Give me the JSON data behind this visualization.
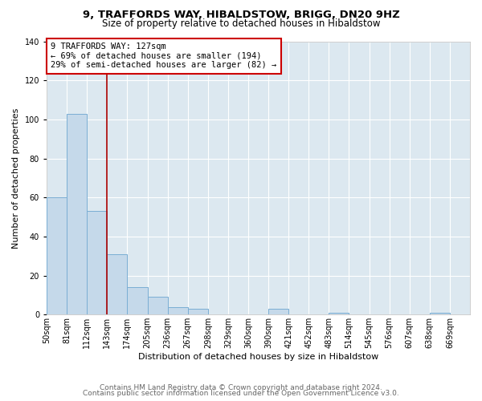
{
  "title": "9, TRAFFORDS WAY, HIBALDSTOW, BRIGG, DN20 9HZ",
  "subtitle": "Size of property relative to detached houses in Hibaldstow",
  "xlabel": "Distribution of detached houses by size in Hibaldstow",
  "ylabel": "Number of detached properties",
  "bin_labels": [
    "50sqm",
    "81sqm",
    "112sqm",
    "143sqm",
    "174sqm",
    "205sqm",
    "236sqm",
    "267sqm",
    "298sqm",
    "329sqm",
    "360sqm",
    "390sqm",
    "421sqm",
    "452sqm",
    "483sqm",
    "514sqm",
    "545sqm",
    "576sqm",
    "607sqm",
    "638sqm",
    "669sqm"
  ],
  "bar_values": [
    60,
    103,
    53,
    31,
    14,
    9,
    4,
    3,
    0,
    0,
    0,
    3,
    0,
    0,
    1,
    0,
    0,
    0,
    0,
    1,
    0
  ],
  "bar_color": "#c5d9ea",
  "bar_edge_color": "#7aaed4",
  "ylim": [
    0,
    140
  ],
  "yticks": [
    0,
    20,
    40,
    60,
    80,
    100,
    120,
    140
  ],
  "vline_color": "#aa0000",
  "annotation_title": "9 TRAFFORDS WAY: 127sqm",
  "annotation_line1": "← 69% of detached houses are smaller (194)",
  "annotation_line2": "29% of semi-detached houses are larger (82) →",
  "annotation_box_facecolor": "#ffffff",
  "annotation_box_edgecolor": "#cc0000",
  "footer1": "Contains HM Land Registry data © Crown copyright and database right 2024.",
  "footer2": "Contains public sector information licensed under the Open Government Licence v3.0.",
  "fig_facecolor": "#ffffff",
  "plot_bg_color": "#dce8f0",
  "title_fontsize": 9.5,
  "subtitle_fontsize": 8.5,
  "axis_label_fontsize": 8,
  "tick_fontsize": 7,
  "annotation_fontsize": 7.5,
  "footer_fontsize": 6.5
}
